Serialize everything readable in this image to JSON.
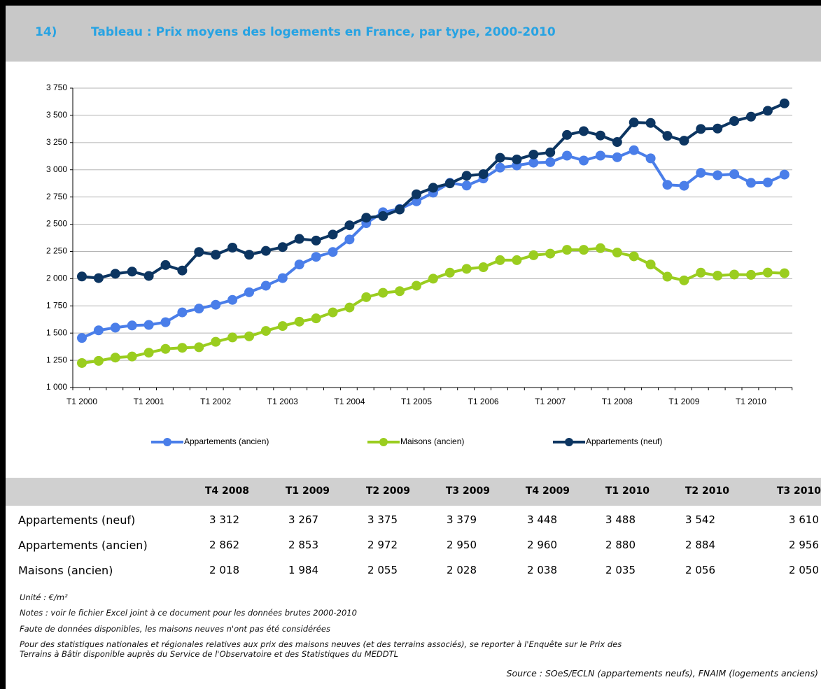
{
  "header": {
    "number": "14)",
    "title": "Tableau : Prix moyens des logements en France, par type, 2000-2010"
  },
  "chart_data": {
    "type": "line",
    "categories": [
      "T1 2000",
      null,
      null,
      null,
      "T1 2001",
      null,
      null,
      null,
      "T1 2002",
      null,
      null,
      null,
      "T1 2003",
      null,
      null,
      null,
      "T1 2004",
      null,
      null,
      null,
      "T1 2005",
      null,
      null,
      null,
      "T1 2006",
      null,
      null,
      null,
      "T1 2007",
      null,
      null,
      null,
      "T1 2008",
      null,
      null,
      null,
      "T1 2009",
      null,
      null,
      null,
      "T1 2010",
      null,
      null
    ],
    "series": [
      {
        "name": "Appartements (ancien)",
        "color": "#4a7ee9",
        "values": [
          1455,
          1525,
          1550,
          1570,
          1575,
          1600,
          1690,
          1725,
          1760,
          1805,
          1875,
          1935,
          2005,
          2130,
          2200,
          2245,
          2360,
          2510,
          2610,
          2640,
          2710,
          2790,
          2880,
          2855,
          2920,
          3020,
          3040,
          3065,
          3070,
          3130,
          3085,
          3130,
          3115,
          3180,
          3105,
          2862,
          2853,
          2972,
          2950,
          2960,
          2880,
          2884,
          2956
        ]
      },
      {
        "name": "Maisons (ancien)",
        "color": "#9acd1f",
        "values": [
          1225,
          1245,
          1275,
          1285,
          1320,
          1355,
          1365,
          1370,
          1420,
          1460,
          1470,
          1520,
          1565,
          1605,
          1635,
          1690,
          1735,
          1830,
          1870,
          1885,
          1935,
          2000,
          2055,
          2090,
          2105,
          2170,
          2170,
          2215,
          2230,
          2265,
          2265,
          2280,
          2240,
          2205,
          2130,
          2018,
          1984,
          2055,
          2028,
          2038,
          2035,
          2056,
          2050
        ]
      },
      {
        "name": "Appartements (neuf)",
        "color": "#0c3561",
        "values": [
          2020,
          2005,
          2045,
          2065,
          2025,
          2125,
          2075,
          2245,
          2220,
          2285,
          2220,
          2255,
          2290,
          2365,
          2350,
          2405,
          2490,
          2560,
          2575,
          2635,
          2775,
          2835,
          2875,
          2945,
          2960,
          3110,
          3095,
          3140,
          3160,
          3320,
          3355,
          3315,
          3255,
          3435,
          3430,
          3312,
          3267,
          3375,
          3379,
          3448,
          3488,
          3542,
          3610
        ]
      }
    ],
    "ylim": [
      1000,
      3750
    ],
    "yticks": [
      {
        "value": 1000,
        "label": "1 000"
      },
      {
        "value": 1250,
        "label": "1 250"
      },
      {
        "value": 1500,
        "label": "1 500"
      },
      {
        "value": 1750,
        "label": "1 750"
      },
      {
        "value": 2000,
        "label": "2 000"
      },
      {
        "value": 2250,
        "label": "2 250"
      },
      {
        "value": 2500,
        "label": "2 500"
      },
      {
        "value": 2750,
        "label": "2 750"
      },
      {
        "value": 3000,
        "label": "3 000"
      },
      {
        "value": 3250,
        "label": "3 250"
      },
      {
        "value": 3500,
        "label": "3 500"
      },
      {
        "value": 3750,
        "label": "3 750"
      }
    ],
    "grid": true,
    "legend": "bottom"
  },
  "table": {
    "columns": [
      "T4 2008",
      "T1 2009",
      "T2 2009",
      "T3 2009",
      "T4 2009",
      "T1 2010",
      "T2 2010",
      "T3 2010"
    ],
    "rows": [
      [
        "Appartements (neuf)",
        "3 312",
        "3 267",
        "3 375",
        "3 379",
        "3 448",
        "3 488",
        "3 542",
        "3 610"
      ],
      [
        "Appartements (ancien)",
        "2 862",
        "2 853",
        "2 972",
        "2 950",
        "2 960",
        "2 880",
        "2 884",
        "2 956"
      ],
      [
        "Maisons (ancien)",
        "2 018",
        "1 984",
        "2 055",
        "2 028",
        "2 038",
        "2 035",
        "2 056",
        "2 050"
      ]
    ]
  },
  "notes": [
    "Unité : €/m²",
    "Notes : voir le fichier Excel joint à ce document pour les données brutes 2000-2010",
    "Faute de données disponibles, les maisons neuves n'ont pas été considérées",
    "Pour des statistiques nationales et régionales relatives aux prix des maisons neuves (et des terrains associés), se reporter à l'Enquête sur le Prix des",
    "Terrains à Bâtir disponible auprès du Service de l'Observatoire et des Statistiques du MEDDTL"
  ],
  "source": "Source : SOeS/ECLN (appartements neufs), FNAIM (logements anciens)"
}
